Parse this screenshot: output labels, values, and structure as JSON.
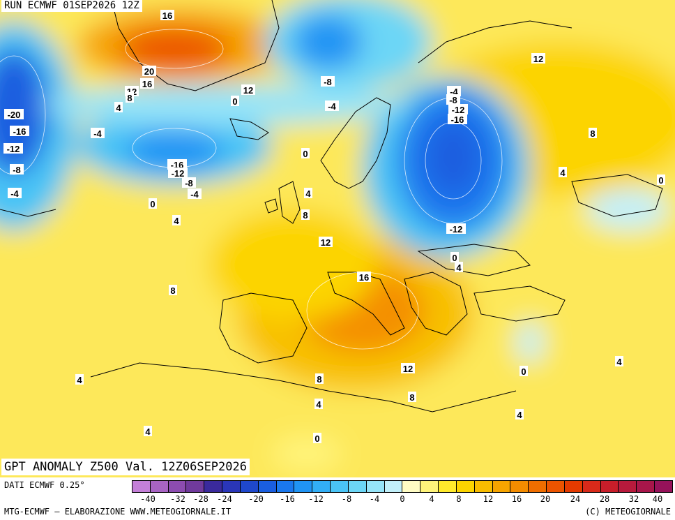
{
  "header": {
    "title": "RUN ECMWF 01SEP2026 12Z"
  },
  "map": {
    "title": "GPT ANOMALY Z500 Val. 12Z06SEP2026",
    "contour_labels": [
      {
        "text": "16"
      },
      {
        "text": "12"
      },
      {
        "text": "20"
      },
      {
        "text": "16"
      },
      {
        "text": "12"
      },
      {
        "text": "8"
      },
      {
        "text": "4"
      },
      {
        "text": "0"
      },
      {
        "text": "-8"
      },
      {
        "text": "-4"
      },
      {
        "text": "12"
      },
      {
        "text": "-20"
      },
      {
        "text": "-16"
      },
      {
        "text": "-12"
      },
      {
        "text": "-8"
      },
      {
        "text": "-4"
      },
      {
        "text": "-4"
      },
      {
        "text": "-16"
      },
      {
        "text": "-12"
      },
      {
        "text": "-8"
      },
      {
        "text": "-4"
      },
      {
        "text": "0"
      },
      {
        "text": "4"
      },
      {
        "text": "0"
      },
      {
        "text": "4"
      },
      {
        "text": "8"
      },
      {
        "text": "12"
      },
      {
        "text": "16"
      },
      {
        "text": "8"
      },
      {
        "text": "-4"
      },
      {
        "text": "-8"
      },
      {
        "text": "-12"
      },
      {
        "text": "-16"
      },
      {
        "text": "8"
      },
      {
        "text": "4"
      },
      {
        "text": "0"
      },
      {
        "text": "-12"
      },
      {
        "text": "0"
      },
      {
        "text": "4"
      },
      {
        "text": "4"
      },
      {
        "text": "8"
      },
      {
        "text": "4"
      },
      {
        "text": "0"
      },
      {
        "text": "12"
      },
      {
        "text": "8"
      },
      {
        "text": "4"
      },
      {
        "text": "0"
      },
      {
        "text": "4"
      },
      {
        "text": "4"
      }
    ]
  },
  "footer": {
    "dati": "DATI ECMWF 0.25°",
    "credit_left": "MTG-ECMWF – ELABORAZIONE WWW.METEOGIORNALE.IT",
    "credit_right": "(C) METEOGIORNALE"
  },
  "legend": {
    "colors": [
      "#c47fd8",
      "#a864c4",
      "#8c4cb0",
      "#703a9c",
      "#3a2a9c",
      "#2a36b8",
      "#1f48cc",
      "#1a5ee0",
      "#1a78ee",
      "#2094f4",
      "#32aef6",
      "#4ac4f6",
      "#6cd6f6",
      "#96e4f8",
      "#c2f0fa",
      "#fffcc4",
      "#fff47a",
      "#ffea2c",
      "#fcd400",
      "#f8bc00",
      "#f6a400",
      "#f48c00",
      "#f06e00",
      "#ec5400",
      "#e43a00",
      "#d82a1a",
      "#c81e2a",
      "#b81a3c",
      "#a8164a",
      "#96125a"
    ],
    "ticks": [
      "-40",
      "-32",
      "-28",
      "-24",
      "-20",
      "-16",
      "-12",
      "-8",
      "-4",
      "0",
      "4",
      "8",
      "12",
      "16",
      "20",
      "24",
      "28",
      "32",
      "40"
    ]
  }
}
